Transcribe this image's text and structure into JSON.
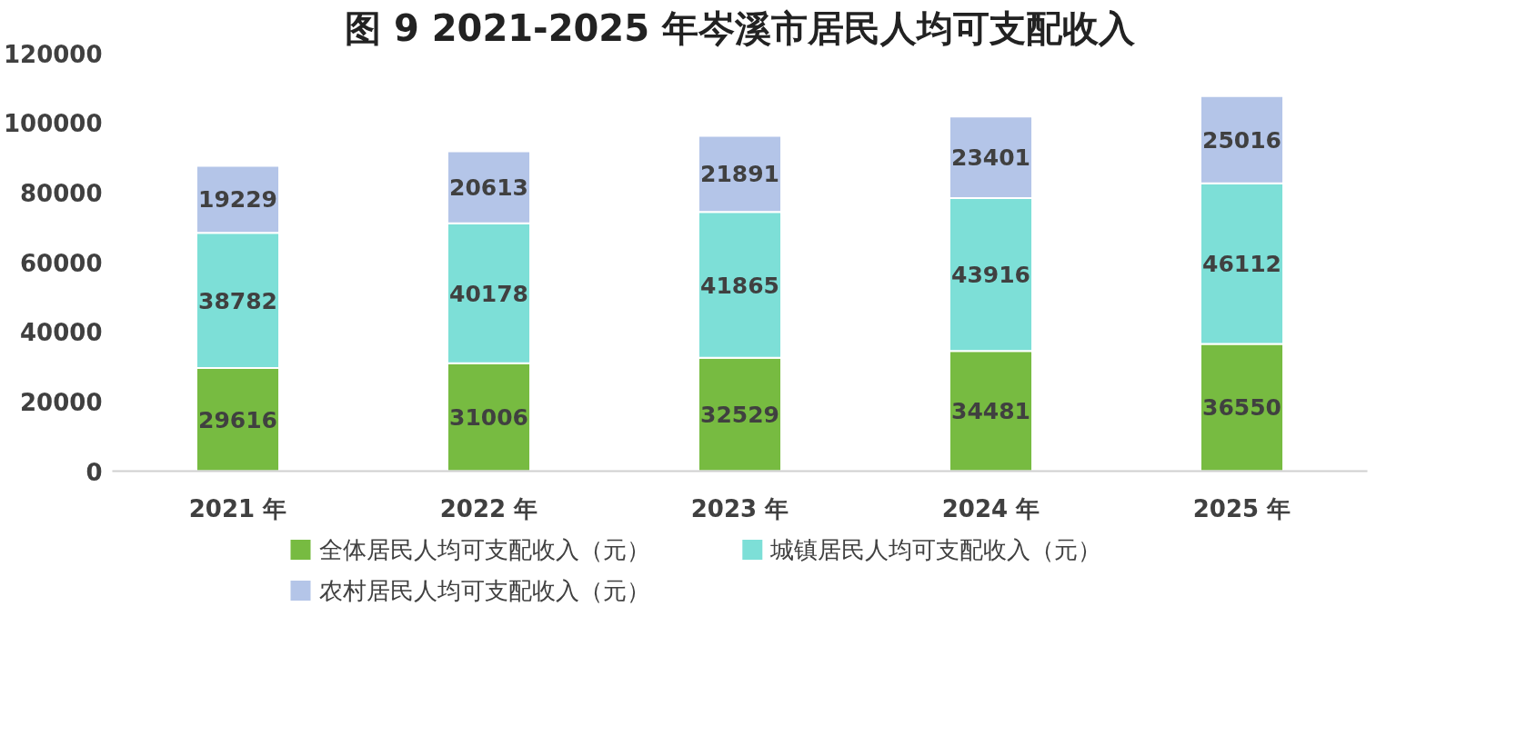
{
  "chart_data": {
    "type": "bar",
    "title": "图 9 2021-2025 年岑溪市居民人均可支配收入",
    "categories": [
      "2021 年",
      "2022 年",
      "2023 年",
      "2024 年",
      "2025 年"
    ],
    "stacked": true,
    "data_labels": true,
    "grid": false,
    "legend": "bottom",
    "ylim": [
      0,
      120000
    ],
    "yticks": [
      0,
      20000,
      40000,
      60000,
      80000,
      100000,
      120000
    ],
    "series": [
      {
        "name": "全体居民人均可支配收入（元）",
        "color": "#77bb41",
        "values": [
          29616,
          31006,
          32529,
          34481,
          36550
        ]
      },
      {
        "name": "城镇居民人均可支配收入（元）",
        "color": "#7ddfd7",
        "values": [
          38782,
          40178,
          41865,
          43916,
          46112
        ]
      },
      {
        "name": "农村居民人均可支配收入（元）",
        "color": "#b4c5e8",
        "values": [
          19229,
          20613,
          21891,
          23401,
          25016
        ]
      }
    ]
  }
}
